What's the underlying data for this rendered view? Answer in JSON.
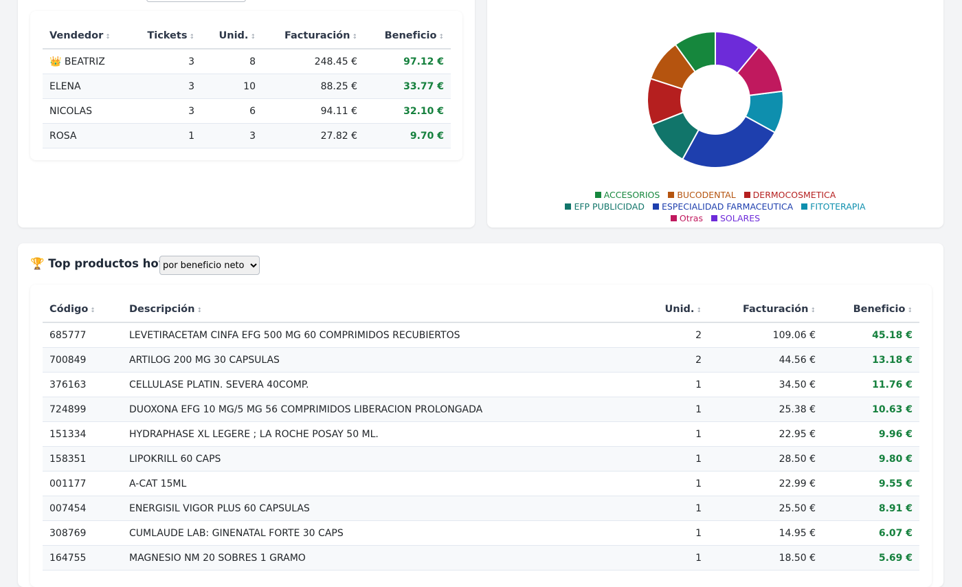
{
  "sellers_table": {
    "headers": [
      "Vendedor",
      "Tickets",
      "Unid.",
      "Facturación",
      "Beneficio"
    ],
    "rows": [
      [
        "👑 BEATRIZ",
        "3",
        "8",
        "248.45 €",
        "97.12 €"
      ],
      [
        "ELENA",
        "3",
        "10",
        "88.25 €",
        "33.77 €"
      ],
      [
        "NICOLAS",
        "3",
        "6",
        "94.11 €",
        "32.10 €"
      ],
      [
        "ROSA",
        "1",
        "3",
        "27.82 €",
        "9.70 €"
      ]
    ]
  },
  "sort_icon": "↕",
  "chart_data": {
    "type": "pie",
    "categories": [
      "ACCESORIOS",
      "BUCODENTAL",
      "DERMOCOSMETICA",
      "EFP PUBLICIDAD",
      "ESPECIALIDAD FARMACEUTICA",
      "FITOTERAPIA",
      "Otras",
      "SOLARES"
    ],
    "values": [
      10,
      10,
      11,
      11,
      25,
      10,
      12,
      11
    ],
    "colors": [
      "#16873d",
      "#b5540f",
      "#b51f1f",
      "#11756a",
      "#1e3fae",
      "#0e8fae",
      "#c0195e",
      "#6d2bd9"
    ],
    "legend": "bottom"
  },
  "top_products": {
    "title": "🏆 Top productos hoy",
    "sort_select": "por beneficio neto",
    "headers": [
      "Código",
      "Descripción",
      "Unid.",
      "Facturación",
      "Beneficio"
    ],
    "rows": [
      [
        "685777",
        "LEVETIRACETAM CINFA EFG 500 MG 60 COMPRIMIDOS RECUBIERTOS",
        "2",
        "109.06 €",
        "45.18 €"
      ],
      [
        "700849",
        "ARTILOG 200 MG 30 CAPSULAS",
        "2",
        "44.56 €",
        "13.18 €"
      ],
      [
        "376163",
        "CELLULASE PLATIN. SEVERA 40COMP.",
        "1",
        "34.50 €",
        "11.76 €"
      ],
      [
        "724899",
        "DUOXONA EFG 10 MG/5 MG 56 COMPRIMIDOS LIBERACION PROLONGADA",
        "1",
        "25.38 €",
        "10.63 €"
      ],
      [
        "151334",
        "HYDRAPHASE XL LEGERE ; LA ROCHE POSAY 50 ML.",
        "1",
        "22.95 €",
        "9.96 €"
      ],
      [
        "158351",
        "LIPOKRILL 60 CAPS",
        "1",
        "28.50 €",
        "9.80 €"
      ],
      [
        "001177",
        "A-CAT 15ML",
        "1",
        "22.99 €",
        "9.55 €"
      ],
      [
        "007454",
        "ENERGISIL VIGOR PLUS 60 CAPSULAS",
        "1",
        "25.50 €",
        "8.91 €"
      ],
      [
        "308769",
        "CUMLAUDE LAB: GINENATAL FORTE 30 CAPS",
        "1",
        "14.95 €",
        "6.07 €"
      ],
      [
        "164755",
        "MAGNESIO NM 20 SOBRES 1 GRAMO",
        "1",
        "18.50 €",
        "5.69 €"
      ]
    ]
  }
}
